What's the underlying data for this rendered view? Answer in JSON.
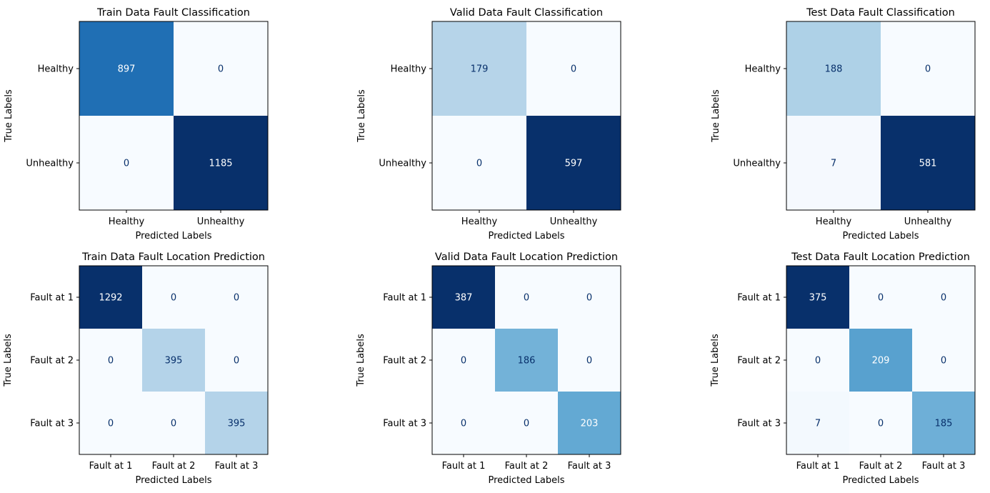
{
  "chart_data": [
    {
      "type": "heatmap",
      "title": "Train Data Fault Classification",
      "xlabel": "Predicted Labels",
      "ylabel": "True Labels",
      "labels": [
        "Healthy",
        "Unhealthy"
      ],
      "matrix": [
        [
          897,
          0
        ],
        [
          0,
          1185
        ]
      ],
      "colormap": "Blues"
    },
    {
      "type": "heatmap",
      "title": "Valid Data Fault Classification",
      "xlabel": "Predicted Labels",
      "ylabel": "True Labels",
      "labels": [
        "Healthy",
        "Unhealthy"
      ],
      "matrix": [
        [
          179,
          0
        ],
        [
          0,
          597
        ]
      ],
      "colormap": "Blues"
    },
    {
      "type": "heatmap",
      "title": "Test Data Fault Classification",
      "xlabel": "Predicted Labels",
      "ylabel": "True Labels",
      "labels": [
        "Healthy",
        "Unhealthy"
      ],
      "matrix": [
        [
          188,
          0
        ],
        [
          7,
          581
        ]
      ],
      "colormap": "Blues"
    },
    {
      "type": "heatmap",
      "title": "Train Data Fault Location Prediction",
      "xlabel": "Predicted Labels",
      "ylabel": "True Labels",
      "labels": [
        "Fault at 1",
        "Fault at 2",
        "Fault at 3"
      ],
      "matrix": [
        [
          1292,
          0,
          0
        ],
        [
          0,
          395,
          0
        ],
        [
          0,
          0,
          395
        ]
      ],
      "colormap": "Blues"
    },
    {
      "type": "heatmap",
      "title": "Valid Data Fault Location Prediction",
      "xlabel": "Predicted Labels",
      "ylabel": "True Labels",
      "labels": [
        "Fault at 1",
        "Fault at 2",
        "Fault at 3"
      ],
      "matrix": [
        [
          387,
          0,
          0
        ],
        [
          0,
          186,
          0
        ],
        [
          0,
          0,
          203
        ]
      ],
      "colormap": "Blues"
    },
    {
      "type": "heatmap",
      "title": "Test Data Fault Location Prediction",
      "xlabel": "Predicted Labels",
      "ylabel": "True Labels",
      "labels": [
        "Fault at 1",
        "Fault at 2",
        "Fault at 3"
      ],
      "matrix": [
        [
          375,
          0,
          0
        ],
        [
          0,
          209,
          0
        ],
        [
          7,
          0,
          185
        ]
      ],
      "colormap": "Blues"
    }
  ]
}
